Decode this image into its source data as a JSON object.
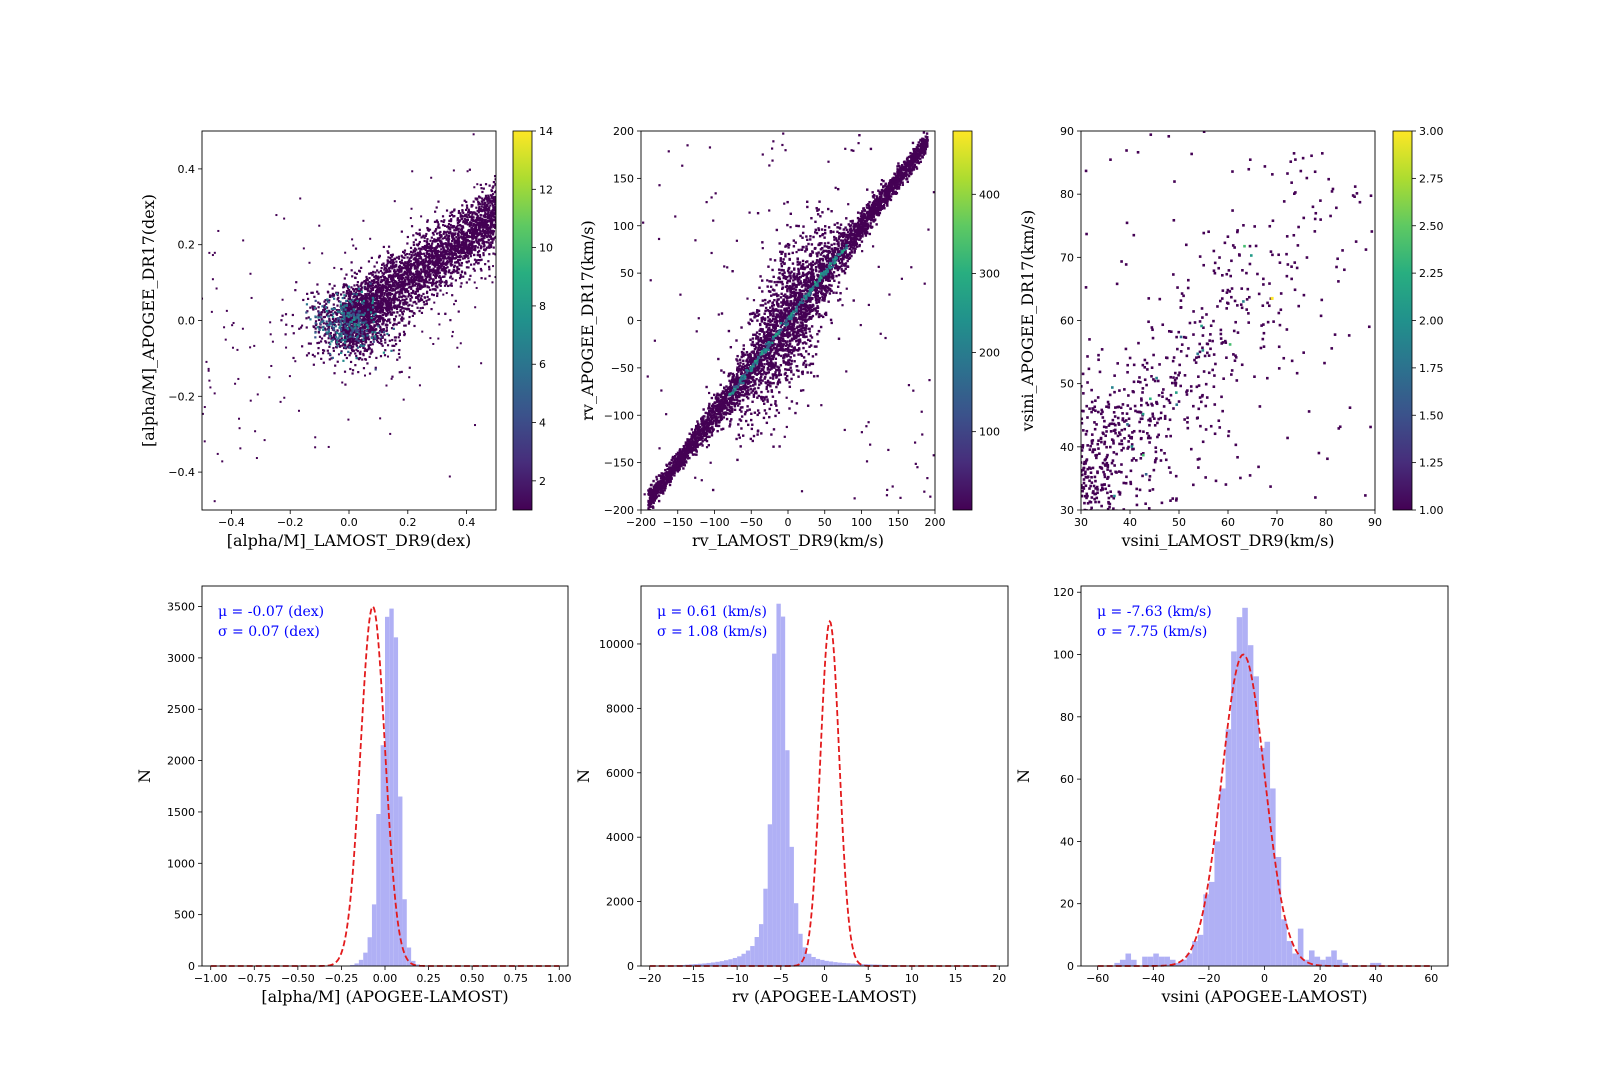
{
  "chart_data": [
    {
      "type": "scatter",
      "subtype": "2d-histogram",
      "xlabel": "[alpha/M]_LAMOST_DR9(dex)",
      "ylabel": "[alpha/M]_APOGEE_DR17(dex)",
      "xlim": [
        -0.5,
        0.5
      ],
      "ylim": [
        -0.5,
        0.5
      ],
      "xticks": [
        -0.4,
        -0.2,
        0.0,
        0.2,
        0.4
      ],
      "xtick_labels": [
        "−0.4",
        "−0.2",
        "0.0",
        "0.2",
        "0.4"
      ],
      "yticks": [
        -0.4,
        -0.2,
        0.0,
        0.2,
        0.4
      ],
      "ytick_labels": [
        "−0.4",
        "−0.2",
        "0.0",
        "0.2",
        "0.4"
      ],
      "colorbar": {
        "min": 1,
        "max": 14,
        "ticks": [
          2,
          4,
          6,
          8,
          10,
          12,
          14
        ],
        "tick_labels": [
          "2",
          "4",
          "6",
          "8",
          "10",
          "12",
          "14"
        ]
      },
      "colormap": "viridis",
      "core": {
        "relation": "linear",
        "slope": 0.55,
        "intercept": 0.0,
        "x_range": [
          -0.05,
          0.5
        ],
        "scatter": 0.045
      }
    },
    {
      "type": "scatter",
      "subtype": "2d-histogram",
      "xlabel": "rv_LAMOST_DR9(km/s)",
      "ylabel": "rv_APOGEE_DR17(km/s)",
      "xlim": [
        -200,
        200
      ],
      "ylim": [
        -200,
        200
      ],
      "xticks": [
        -200,
        -150,
        -100,
        -50,
        0,
        50,
        100,
        150,
        200
      ],
      "xtick_labels": [
        "−200",
        "−150",
        "−100",
        "−50",
        "0",
        "50",
        "100",
        "150",
        "200"
      ],
      "yticks": [
        -200,
        -150,
        -100,
        -50,
        0,
        50,
        100,
        150,
        200
      ],
      "ytick_labels": [
        "−200",
        "−150",
        "−100",
        "−50",
        "0",
        "50",
        "100",
        "150",
        "200"
      ],
      "colorbar": {
        "min": 1,
        "max": 480,
        "ticks": [
          100,
          200,
          300,
          400
        ],
        "tick_labels": [
          "100",
          "200",
          "300",
          "400"
        ]
      },
      "colormap": "viridis",
      "core": {
        "relation": "linear",
        "slope": 1.0,
        "intercept": 0.0,
        "x_range": [
          -190,
          190
        ],
        "scatter": 6
      }
    },
    {
      "type": "scatter",
      "subtype": "2d-histogram",
      "xlabel": "vsini_LAMOST_DR9(km/s)",
      "ylabel": "vsini_APOGEE_DR17(km/s)",
      "xlim": [
        30,
        90
      ],
      "ylim": [
        30,
        90
      ],
      "xticks": [
        30,
        40,
        50,
        60,
        70,
        80,
        90
      ],
      "xtick_labels": [
        "30",
        "40",
        "50",
        "60",
        "70",
        "80",
        "90"
      ],
      "yticks": [
        30,
        40,
        50,
        60,
        70,
        80,
        90
      ],
      "ytick_labels": [
        "30",
        "40",
        "50",
        "60",
        "70",
        "80",
        "90"
      ],
      "colorbar": {
        "min": 1.0,
        "max": 3.0,
        "ticks": [
          1.0,
          1.25,
          1.5,
          1.75,
          2.0,
          2.25,
          2.5,
          2.75,
          3.0
        ],
        "tick_labels": [
          "1.00",
          "1.25",
          "1.50",
          "1.75",
          "2.00",
          "2.25",
          "2.50",
          "2.75",
          "3.00"
        ]
      },
      "colormap": "viridis",
      "core": {
        "relation": "linear",
        "slope": 0.9,
        "intercept": 5,
        "x_range": [
          30,
          90
        ],
        "scatter": 8
      }
    },
    {
      "type": "bar",
      "subtype": "histogram",
      "xlabel": "[alpha/M] (APOGEE-LAMOST)",
      "ylabel": "N",
      "xlim": [
        -1.05,
        1.05
      ],
      "ylim": [
        0,
        3700
      ],
      "xticks": [
        -1.0,
        -0.75,
        -0.5,
        -0.25,
        0.0,
        0.25,
        0.5,
        0.75,
        1.0
      ],
      "xtick_labels": [
        "−1.00",
        "−0.75",
        "−0.50",
        "−0.25",
        "0.00",
        "0.25",
        "0.50",
        "0.75",
        "1.00"
      ],
      "yticks": [
        0,
        500,
        1000,
        1500,
        2000,
        2500,
        3000,
        3500
      ],
      "ytick_labels": [
        "0",
        "500",
        "1000",
        "1500",
        "2000",
        "2500",
        "3000",
        "3500"
      ],
      "bins": {
        "start": -1.0,
        "end": 1.0,
        "count": 80
      },
      "bin_counts": [
        0,
        0,
        0,
        0,
        0,
        0,
        0,
        0,
        0,
        0,
        0,
        0,
        0,
        0,
        0,
        0,
        0,
        0,
        0,
        0,
        0,
        0,
        0,
        0,
        0,
        0,
        0,
        0,
        0,
        0,
        0,
        2,
        10,
        25,
        60,
        130,
        280,
        600,
        1480,
        2150,
        3400,
        3480,
        3200,
        1650,
        650,
        180,
        50,
        15,
        5,
        0,
        0,
        0,
        0,
        0,
        0,
        0,
        0,
        0,
        0,
        0,
        0,
        0,
        0,
        0,
        0,
        0,
        0,
        0,
        0,
        0,
        0,
        0,
        0,
        0,
        0,
        0,
        0,
        0,
        0,
        0
      ],
      "fit": {
        "type": "gaussian",
        "mu": -0.07,
        "sigma": 0.07,
        "peak": 3500
      },
      "annotations": [
        "μ = -0.07 (dex)",
        "σ = 0.07 (dex)"
      ],
      "bar_color": "#b0b0f5",
      "fit_color": "#e31a1c"
    },
    {
      "type": "bar",
      "subtype": "histogram",
      "xlabel": "rv (APOGEE-LAMOST)",
      "ylabel": "N",
      "xlim": [
        -21,
        21
      ],
      "ylim": [
        0,
        11800
      ],
      "xticks": [
        -20,
        -15,
        -10,
        -5,
        0,
        5,
        10,
        15,
        20
      ],
      "xtick_labels": [
        "−20",
        "−15",
        "−10",
        "−5",
        "0",
        "5",
        "10",
        "15",
        "20"
      ],
      "yticks": [
        0,
        2000,
        4000,
        6000,
        8000,
        10000
      ],
      "ytick_labels": [
        "0",
        "2000",
        "4000",
        "6000",
        "8000",
        "10000"
      ],
      "bins": {
        "start": -20,
        "end": 20,
        "count": 80
      },
      "bin_counts": [
        0,
        0,
        5,
        10,
        15,
        20,
        25,
        30,
        40,
        50,
        60,
        70,
        80,
        95,
        110,
        130,
        150,
        180,
        210,
        250,
        300,
        380,
        480,
        620,
        900,
        1300,
        2400,
        4400,
        9700,
        11250,
        10850,
        6700,
        3700,
        1950,
        1000,
        580,
        380,
        280,
        220,
        190,
        160,
        140,
        120,
        105,
        95,
        85,
        75,
        65,
        60,
        55,
        50,
        45,
        40,
        35,
        30,
        25,
        20,
        20,
        15,
        15,
        10,
        10,
        5,
        5,
        5,
        5,
        0,
        0,
        0,
        0,
        0,
        0,
        0,
        0,
        0,
        0,
        0,
        0,
        0,
        0
      ],
      "fit": {
        "type": "gaussian",
        "mu": 0.61,
        "sigma": 1.08,
        "peak": 10700
      },
      "annotations": [
        "μ = 0.61 (km/s)",
        "σ = 1.08 (km/s)"
      ],
      "bar_color": "#b0b0f5",
      "fit_color": "#e31a1c"
    },
    {
      "type": "bar",
      "subtype": "histogram",
      "xlabel": "vsini (APOGEE-LAMOST)",
      "ylabel": "N",
      "xlim": [
        -66,
        66
      ],
      "ylim": [
        0,
        122
      ],
      "xticks": [
        -60,
        -40,
        -20,
        0,
        20,
        40,
        60
      ],
      "xtick_labels": [
        "−60",
        "−40",
        "−20",
        "0",
        "20",
        "40",
        "60"
      ],
      "yticks": [
        0,
        20,
        40,
        60,
        80,
        100,
        120
      ],
      "ytick_labels": [
        "0",
        "20",
        "40",
        "60",
        "80",
        "100",
        "120"
      ],
      "bins": {
        "start": -60,
        "end": 60,
        "count": 60
      },
      "bin_counts": [
        0,
        0,
        0,
        1,
        2,
        4,
        2,
        0,
        3,
        3,
        4,
        3,
        3,
        2,
        1,
        2,
        4,
        8,
        10,
        23,
        27,
        40,
        57,
        76,
        101,
        112,
        115,
        103,
        93,
        70,
        72,
        57,
        35,
        15,
        8,
        4,
        12,
        2,
        5,
        3,
        2,
        3,
        5,
        2,
        1,
        0,
        0,
        0,
        0,
        1,
        1,
        0,
        0,
        0,
        0,
        0,
        0,
        0,
        0,
        0
      ],
      "fit": {
        "type": "gaussian",
        "mu": -7.63,
        "sigma": 7.75,
        "peak": 100
      },
      "annotations": [
        "μ = -7.63 (km/s)",
        "σ = 7.75 (km/s)"
      ],
      "bar_color": "#b0b0f5",
      "fit_color": "#e31a1c"
    }
  ]
}
